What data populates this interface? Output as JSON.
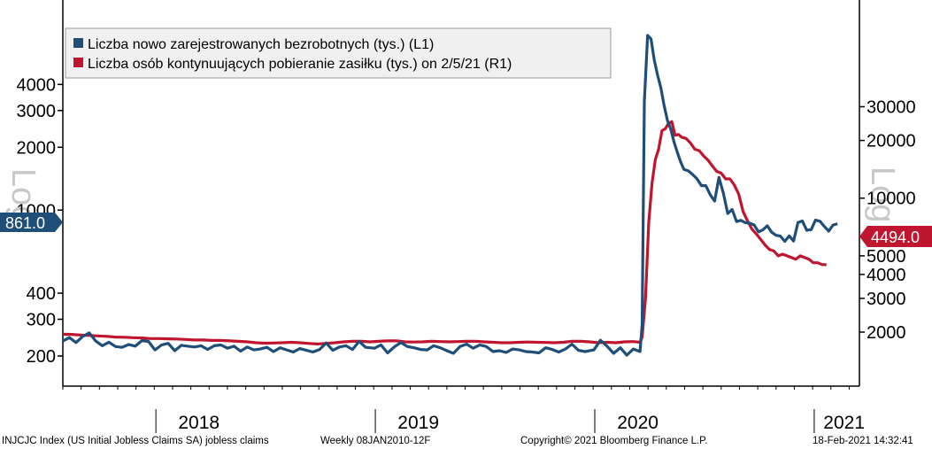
{
  "chart_data": {
    "type": "line",
    "scale": "log",
    "x_range": [
      2017.58,
      2021.21
    ],
    "left_axis": {
      "ticks": [
        200,
        300,
        400,
        1000,
        2000,
        3000,
        4000
      ],
      "tick_labels": [
        "200",
        "300",
        "400",
        "1000",
        "2000",
        "3000",
        "4000"
      ],
      "watermark": "Log"
    },
    "right_axis": {
      "ticks": [
        2000,
        3000,
        4000,
        5000,
        10000,
        20000,
        30000
      ],
      "tick_labels": [
        "2000",
        "3000",
        "4000",
        "5000",
        "10000",
        "20000",
        "30000"
      ],
      "watermark": "Log"
    },
    "x_labels": [
      {
        "label": "2018",
        "x": 2018.2
      },
      {
        "label": "2019",
        "x": 2019.2
      },
      {
        "label": "2020",
        "x": 2020.2
      },
      {
        "label": "2021",
        "x": 2021.14
      }
    ],
    "year_boundaries": [
      2018.0,
      2019.0,
      2020.0,
      2021.0
    ],
    "series": [
      {
        "name": "Liczba nowo zarejestrowanych bezrobotnych (tys.) (L1)",
        "axis": "left",
        "color": "#1f4e79",
        "last_value_label": "861.0",
        "points": [
          [
            2017.58,
            236
          ],
          [
            2017.61,
            245
          ],
          [
            2017.64,
            232
          ],
          [
            2017.67,
            248
          ],
          [
            2017.7,
            258
          ],
          [
            2017.73,
            236
          ],
          [
            2017.76,
            224
          ],
          [
            2017.79,
            233
          ],
          [
            2017.82,
            222
          ],
          [
            2017.85,
            220
          ],
          [
            2017.88,
            227
          ],
          [
            2017.91,
            223
          ],
          [
            2017.94,
            237
          ],
          [
            2017.97,
            235
          ],
          [
            2018.0,
            214
          ],
          [
            2018.03,
            226
          ],
          [
            2018.06,
            230
          ],
          [
            2018.09,
            212
          ],
          [
            2018.12,
            225
          ],
          [
            2018.15,
            223
          ],
          [
            2018.18,
            221
          ],
          [
            2018.21,
            224
          ],
          [
            2018.24,
            215
          ],
          [
            2018.27,
            224
          ],
          [
            2018.3,
            226
          ],
          [
            2018.33,
            218
          ],
          [
            2018.36,
            223
          ],
          [
            2018.39,
            211
          ],
          [
            2018.42,
            221
          ],
          [
            2018.45,
            214
          ],
          [
            2018.48,
            216
          ],
          [
            2018.51,
            220
          ],
          [
            2018.54,
            210
          ],
          [
            2018.57,
            219
          ],
          [
            2018.6,
            214
          ],
          [
            2018.63,
            209
          ],
          [
            2018.66,
            217
          ],
          [
            2018.69,
            213
          ],
          [
            2018.72,
            209
          ],
          [
            2018.75,
            215
          ],
          [
            2018.78,
            231
          ],
          [
            2018.81,
            213
          ],
          [
            2018.84,
            221
          ],
          [
            2018.87,
            224
          ],
          [
            2018.9,
            215
          ],
          [
            2018.93,
            235
          ],
          [
            2018.96,
            220
          ],
          [
            2019.0,
            218
          ],
          [
            2019.03,
            226
          ],
          [
            2019.06,
            207
          ],
          [
            2019.09,
            221
          ],
          [
            2019.12,
            232
          ],
          [
            2019.15,
            222
          ],
          [
            2019.18,
            219
          ],
          [
            2019.21,
            215
          ],
          [
            2019.24,
            214
          ],
          [
            2019.27,
            224
          ],
          [
            2019.3,
            219
          ],
          [
            2019.33,
            212
          ],
          [
            2019.36,
            206
          ],
          [
            2019.39,
            222
          ],
          [
            2019.42,
            228
          ],
          [
            2019.45,
            218
          ],
          [
            2019.48,
            226
          ],
          [
            2019.51,
            222
          ],
          [
            2019.54,
            210
          ],
          [
            2019.57,
            212
          ],
          [
            2019.6,
            208
          ],
          [
            2019.63,
            216
          ],
          [
            2019.66,
            214
          ],
          [
            2019.69,
            210
          ],
          [
            2019.72,
            209
          ],
          [
            2019.75,
            207
          ],
          [
            2019.78,
            219
          ],
          [
            2019.81,
            215
          ],
          [
            2019.84,
            209
          ],
          [
            2019.87,
            216
          ],
          [
            2019.9,
            228
          ],
          [
            2019.93,
            213
          ],
          [
            2019.96,
            210
          ],
          [
            2020.0,
            214
          ],
          [
            2020.03,
            238
          ],
          [
            2020.06,
            223
          ],
          [
            2020.09,
            206
          ],
          [
            2020.12,
            219
          ],
          [
            2020.15,
            202
          ],
          [
            2020.18,
            216
          ],
          [
            2020.21,
            210
          ],
          [
            2020.22,
            282
          ],
          [
            2020.23,
            3307
          ],
          [
            2020.245,
            6867
          ],
          [
            2020.26,
            6615
          ],
          [
            2020.275,
            5237
          ],
          [
            2020.29,
            4442
          ],
          [
            2020.305,
            3867
          ],
          [
            2020.32,
            3176
          ],
          [
            2020.335,
            2687
          ],
          [
            2020.35,
            2446
          ],
          [
            2020.365,
            2123
          ],
          [
            2020.38,
            1897
          ],
          [
            2020.395,
            1708
          ],
          [
            2020.41,
            1566
          ],
          [
            2020.43,
            1542
          ],
          [
            2020.45,
            1480
          ],
          [
            2020.47,
            1413
          ],
          [
            2020.49,
            1310
          ],
          [
            2020.51,
            1310
          ],
          [
            2020.53,
            1186
          ],
          [
            2020.55,
            1104
          ],
          [
            2020.57,
            1435
          ],
          [
            2020.59,
            1204
          ],
          [
            2020.61,
            963
          ],
          [
            2020.63,
            1006
          ],
          [
            2020.65,
            881
          ],
          [
            2020.67,
            893
          ],
          [
            2020.69,
            870
          ],
          [
            2020.71,
            866
          ],
          [
            2020.73,
            849
          ],
          [
            2020.75,
            787
          ],
          [
            2020.77,
            804
          ],
          [
            2020.79,
            842
          ],
          [
            2020.81,
            784
          ],
          [
            2020.83,
            757
          ],
          [
            2020.85,
            751
          ],
          [
            2020.87,
            709
          ],
          [
            2020.89,
            752
          ],
          [
            2020.91,
            711
          ],
          [
            2020.93,
            873
          ],
          [
            2020.95,
            887
          ],
          [
            2020.97,
            801
          ],
          [
            2020.99,
            806
          ],
          [
            2021.01,
            896
          ],
          [
            2021.03,
            885
          ],
          [
            2021.05,
            836
          ],
          [
            2021.07,
            793
          ],
          [
            2021.09,
            848
          ],
          [
            2021.11,
            861
          ]
        ]
      },
      {
        "name": "Liczba osób kontynuujących pobieranie zasiłku (tys.) on 2/5/21 (R1)",
        "axis": "right",
        "color": "#c0152f",
        "last_value_label": "4494.0",
        "points": [
          [
            2017.58,
            1950
          ],
          [
            2017.62,
            1945
          ],
          [
            2017.66,
            1930
          ],
          [
            2017.7,
            1920
          ],
          [
            2017.74,
            1910
          ],
          [
            2017.78,
            1900
          ],
          [
            2017.82,
            1885
          ],
          [
            2017.86,
            1880
          ],
          [
            2017.9,
            1870
          ],
          [
            2017.94,
            1865
          ],
          [
            2017.98,
            1850
          ],
          [
            2018.02,
            1850
          ],
          [
            2018.06,
            1845
          ],
          [
            2018.1,
            1840
          ],
          [
            2018.14,
            1830
          ],
          [
            2018.18,
            1820
          ],
          [
            2018.22,
            1820
          ],
          [
            2018.26,
            1810
          ],
          [
            2018.3,
            1810
          ],
          [
            2018.34,
            1800
          ],
          [
            2018.38,
            1790
          ],
          [
            2018.42,
            1780
          ],
          [
            2018.46,
            1760
          ],
          [
            2018.5,
            1750
          ],
          [
            2018.54,
            1755
          ],
          [
            2018.58,
            1760
          ],
          [
            2018.62,
            1770
          ],
          [
            2018.66,
            1760
          ],
          [
            2018.7,
            1745
          ],
          [
            2018.74,
            1735
          ],
          [
            2018.78,
            1745
          ],
          [
            2018.82,
            1760
          ],
          [
            2018.86,
            1780
          ],
          [
            2018.9,
            1790
          ],
          [
            2018.94,
            1790
          ],
          [
            2018.98,
            1780
          ],
          [
            2019.02,
            1790
          ],
          [
            2019.06,
            1800
          ],
          [
            2019.1,
            1800
          ],
          [
            2019.14,
            1780
          ],
          [
            2019.18,
            1775
          ],
          [
            2019.22,
            1780
          ],
          [
            2019.26,
            1790
          ],
          [
            2019.3,
            1785
          ],
          [
            2019.34,
            1780
          ],
          [
            2019.38,
            1785
          ],
          [
            2019.42,
            1790
          ],
          [
            2019.46,
            1790
          ],
          [
            2019.5,
            1780
          ],
          [
            2019.54,
            1770
          ],
          [
            2019.58,
            1760
          ],
          [
            2019.62,
            1760
          ],
          [
            2019.66,
            1770
          ],
          [
            2019.7,
            1775
          ],
          [
            2019.74,
            1770
          ],
          [
            2019.78,
            1765
          ],
          [
            2019.82,
            1760
          ],
          [
            2019.86,
            1770
          ],
          [
            2019.9,
            1790
          ],
          [
            2019.94,
            1790
          ],
          [
            2019.98,
            1780
          ],
          [
            2020.02,
            1760
          ],
          [
            2020.06,
            1770
          ],
          [
            2020.1,
            1760
          ],
          [
            2020.14,
            1780
          ],
          [
            2020.18,
            1785
          ],
          [
            2020.21,
            1770
          ],
          [
            2020.22,
            1880
          ],
          [
            2020.235,
            3000
          ],
          [
            2020.25,
            7500
          ],
          [
            2020.265,
            12000
          ],
          [
            2020.28,
            15900
          ],
          [
            2020.295,
            18000
          ],
          [
            2020.31,
            22500
          ],
          [
            2020.325,
            23000
          ],
          [
            2020.34,
            24500
          ],
          [
            2020.355,
            25100
          ],
          [
            2020.37,
            21300
          ],
          [
            2020.385,
            21500
          ],
          [
            2020.4,
            20800
          ],
          [
            2020.42,
            20500
          ],
          [
            2020.44,
            19400
          ],
          [
            2020.46,
            18000
          ],
          [
            2020.48,
            17700
          ],
          [
            2020.5,
            16600
          ],
          [
            2020.52,
            15800
          ],
          [
            2020.54,
            14700
          ],
          [
            2020.56,
            13800
          ],
          [
            2020.58,
            13500
          ],
          [
            2020.6,
            12600
          ],
          [
            2020.62,
            12600
          ],
          [
            2020.64,
            11700
          ],
          [
            2020.66,
            10500
          ],
          [
            2020.68,
            8500
          ],
          [
            2020.7,
            7600
          ],
          [
            2020.72,
            6900
          ],
          [
            2020.74,
            6500
          ],
          [
            2020.76,
            6100
          ],
          [
            2020.78,
            5700
          ],
          [
            2020.8,
            5400
          ],
          [
            2020.82,
            5300
          ],
          [
            2020.84,
            5000
          ],
          [
            2020.86,
            5100
          ],
          [
            2020.88,
            5000
          ],
          [
            2020.9,
            4900
          ],
          [
            2020.92,
            4800
          ],
          [
            2020.94,
            5000
          ],
          [
            2020.96,
            4900
          ],
          [
            2020.98,
            4800
          ],
          [
            2021.0,
            4600
          ],
          [
            2021.02,
            4600
          ],
          [
            2021.04,
            4500
          ],
          [
            2021.06,
            4494
          ]
        ]
      }
    ]
  },
  "footer": {
    "index_text": "INJCJC Index (US Initial Jobless Claims SA) jobless claims",
    "frequency_text": "Weekly 08JAN2010-12F",
    "copyright_text": "Copyright© 2021 Bloomberg Finance L.P.",
    "timestamp_text": "18-Feb-2021 14:32:41"
  }
}
